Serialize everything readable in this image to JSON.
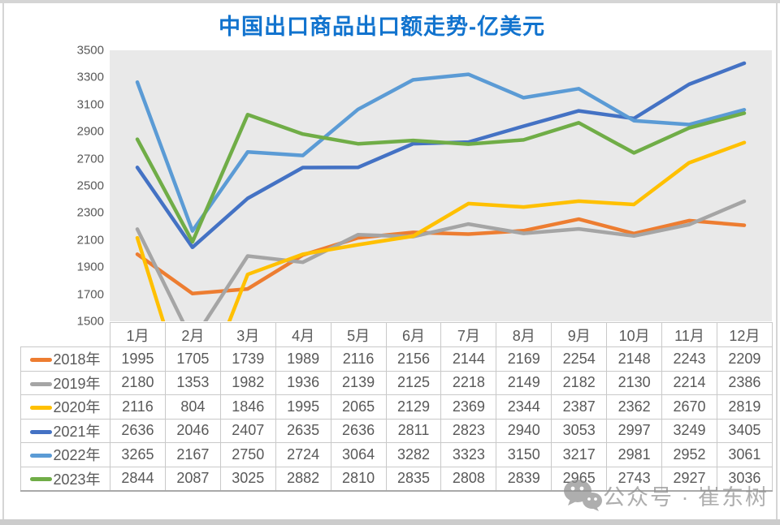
{
  "title": "中国出口商品出口额走势-亿美元",
  "theme": {
    "title_color": "#1173ce",
    "plot_bg": "#e9e9e9",
    "axis_text_color": "#595959",
    "table_text_color": "#595959",
    "table_border_color": "#c9c9c9",
    "watermark_color": "#8f8f8f"
  },
  "y_axis_ticks": [
    "3500",
    "3300",
    "3100",
    "2900",
    "2700",
    "2500",
    "2300",
    "2100",
    "1900",
    "1700",
    "1500"
  ],
  "chart_data": {
    "type": "line",
    "title": "中国出口商品出口额走势-亿美元",
    "categories": [
      "1月",
      "2月",
      "3月",
      "4月",
      "5月",
      "6月",
      "7月",
      "8月",
      "9月",
      "10月",
      "11月",
      "12月"
    ],
    "series": [
      {
        "name": "2018年",
        "color": "#ED7D31",
        "values": [
          1995,
          1705,
          1739,
          1989,
          2116,
          2156,
          2144,
          2169,
          2254,
          2148,
          2243,
          2209
        ]
      },
      {
        "name": "2019年",
        "color": "#A5A5A5",
        "values": [
          2180,
          1353,
          1982,
          1936,
          2139,
          2125,
          2218,
          2149,
          2182,
          2130,
          2214,
          2386
        ]
      },
      {
        "name": "2020年",
        "color": "#FFC000",
        "values": [
          2116,
          804,
          1846,
          1995,
          2065,
          2129,
          2369,
          2344,
          2387,
          2362,
          2670,
          2819
        ]
      },
      {
        "name": "2021年",
        "color": "#4472C4",
        "values": [
          2636,
          2046,
          2407,
          2635,
          2636,
          2811,
          2823,
          2940,
          3053,
          2997,
          3249,
          3405
        ]
      },
      {
        "name": "2022年",
        "color": "#5B9BD5",
        "values": [
          3265,
          2167,
          2750,
          2724,
          3064,
          3282,
          3323,
          3150,
          3217,
          2981,
          2952,
          3061
        ]
      },
      {
        "name": "2023年",
        "color": "#70AD47",
        "values": [
          2844,
          2087,
          3025,
          2882,
          2810,
          2835,
          2808,
          2839,
          2965,
          2743,
          2927,
          3036
        ]
      }
    ],
    "xlabel": "",
    "ylabel": "",
    "ylim": [
      1500,
      3500
    ],
    "ytick_step": 200,
    "grid": false,
    "legend_position": "table-left",
    "plot_background": "#e9e9e9"
  },
  "watermark": {
    "icon": "wechat-icon",
    "text": "公众号 · 崔东树"
  }
}
